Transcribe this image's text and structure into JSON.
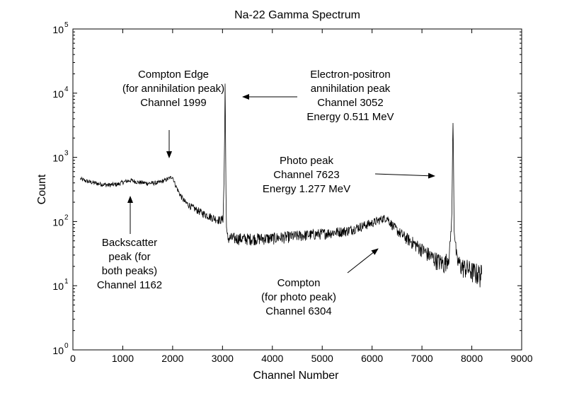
{
  "chart_data": {
    "type": "line",
    "title": "Na-22 Gamma Spectrum",
    "xlabel": "Channel Number",
    "ylabel": "Count",
    "xlim": [
      0,
      9000
    ],
    "ylim": [
      1,
      100000
    ],
    "yscale": "log",
    "grid": false,
    "x_ticks": [
      "0",
      "1000",
      "2000",
      "3000",
      "4000",
      "5000",
      "6000",
      "7000",
      "8000",
      "9000"
    ],
    "y_tick_bases": [
      "10",
      "10",
      "10",
      "10",
      "10",
      "10"
    ],
    "y_tick_exponents": [
      "0",
      "1",
      "2",
      "3",
      "4",
      "5"
    ],
    "series": [
      {
        "color": "#000000",
        "x": [
          150,
          300,
          500,
          700,
          900,
          1000,
          1162,
          1300,
          1500,
          1700,
          1850,
          1950,
          1999,
          2050,
          2150,
          2250,
          2400,
          2600,
          2800,
          2950,
          3010,
          3030,
          3045,
          3052,
          3060,
          3070,
          3080,
          3090,
          3110,
          3200,
          3500,
          4000,
          4500,
          5000,
          5500,
          5800,
          6000,
          6200,
          6304,
          6350,
          6450,
          6600,
          6800,
          7000,
          7200,
          7350,
          7450,
          7550,
          7600,
          7615,
          7623,
          7632,
          7645,
          7700,
          7800,
          7900,
          8000,
          8100,
          8200
        ],
        "y": [
          460,
          420,
          390,
          370,
          380,
          410,
          440,
          410,
          395,
          400,
          440,
          480,
          500,
          380,
          260,
          200,
          165,
          135,
          115,
          105,
          110,
          400,
          3000,
          14000,
          3000,
          300,
          80,
          60,
          55,
          55,
          54,
          55,
          60,
          65,
          72,
          85,
          95,
          110,
          115,
          100,
          80,
          62,
          48,
          37,
          28,
          24,
          22,
          30,
          120,
          1500,
          3400,
          1200,
          80,
          25,
          20,
          19,
          17,
          16,
          15
        ]
      }
    ],
    "annotations": [
      {
        "lines": [
          "Compton Edge",
          "(for annihilation peak)",
          "Channel 1999"
        ],
        "points_to": [
          1950,
          1050
        ]
      },
      {
        "lines": [
          "Electron-positron",
          "annihilation peak",
          "Channel 3052",
          "Energy 0.511 MeV"
        ],
        "points_to": [
          3340,
          8200
        ]
      },
      {
        "lines": [
          "Photo peak",
          "Channel 7623",
          "Energy 1.277 MeV"
        ],
        "points_to": [
          7270,
          580
        ]
      },
      {
        "lines": [
          "Backscatter",
          "peak (for",
          "both peaks)",
          "Channel 1162"
        ],
        "points_to": [
          1150,
          290
        ]
      },
      {
        "lines": [
          "Compton",
          "(for photo peak)",
          "Channel 6304"
        ],
        "points_to": [
          6170,
          90
        ]
      }
    ]
  }
}
